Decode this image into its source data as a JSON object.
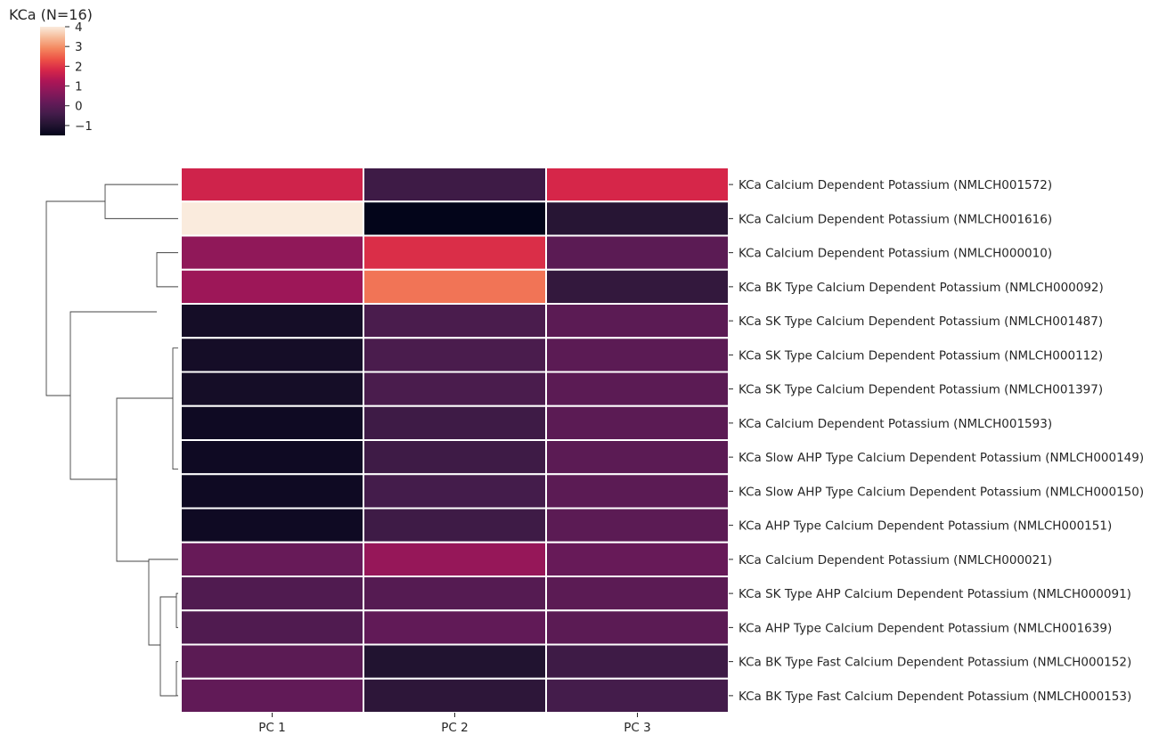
{
  "chart_data": {
    "type": "heatmap",
    "title": "KCa (N=16)",
    "columns": [
      "PC 1",
      "PC 2",
      "PC 3"
    ],
    "rows": [
      "KCa Calcium Dependent Potassium (NMLCH001572)",
      "KCa Calcium Dependent Potassium (NMLCH001616)",
      "KCa Calcium Dependent Potassium (NMLCH000010)",
      "KCa BK Type Calcium Dependent Potassium (NMLCH000092)",
      "KCa SK Type Calcium Dependent Potassium (NMLCH001487)",
      "KCa SK Type Calcium Dependent Potassium (NMLCH000112)",
      "KCa SK Type Calcium Dependent Potassium (NMLCH001397)",
      "KCa Calcium Dependent Potassium (NMLCH001593)",
      "KCa Slow AHP Type Calcium Dependent Potassium (NMLCH000149)",
      "KCa Slow AHP Type Calcium Dependent Potassium (NMLCH000150)",
      "KCa AHP Type Calcium Dependent Potassium (NMLCH000151)",
      "KCa Calcium Dependent Potassium (NMLCH000021)",
      "KCa SK Type AHP Calcium Dependent Potassium (NMLCH000091)",
      "KCa AHP Type Calcium Dependent Potassium (NMLCH001639)",
      "KCa BK Type Fast Calcium Dependent Potassium (NMLCH000152)",
      "KCa BK Type Fast Calcium Dependent Potassium (NMLCH000153)"
    ],
    "values": [
      [
        1.7,
        -0.5,
        1.8
      ],
      [
        4.0,
        -1.5,
        -0.9
      ],
      [
        0.8,
        1.9,
        0.0
      ],
      [
        1.0,
        2.7,
        -0.7
      ],
      [
        -1.2,
        -0.3,
        0.0
      ],
      [
        -1.2,
        -0.3,
        0.0
      ],
      [
        -1.2,
        -0.3,
        0.0
      ],
      [
        -1.3,
        -0.5,
        0.0
      ],
      [
        -1.3,
        -0.5,
        0.0
      ],
      [
        -1.3,
        -0.4,
        0.0
      ],
      [
        -1.3,
        -0.5,
        0.0
      ],
      [
        0.2,
        0.9,
        0.2
      ],
      [
        -0.2,
        -0.1,
        0.0
      ],
      [
        -0.2,
        0.1,
        0.0
      ],
      [
        0.0,
        -1.0,
        -0.5
      ],
      [
        0.1,
        -0.8,
        -0.4
      ]
    ],
    "colorbar": {
      "min": -1.5,
      "max": 4.0,
      "ticks": [
        -1,
        0,
        1,
        2,
        3,
        4
      ],
      "tick_labels": [
        "−1",
        "0",
        "1",
        "2",
        "3",
        "4"
      ]
    },
    "colormap": "rocket",
    "dendrogram": "rows",
    "grid": false,
    "legend": "top-left colorbar"
  }
}
